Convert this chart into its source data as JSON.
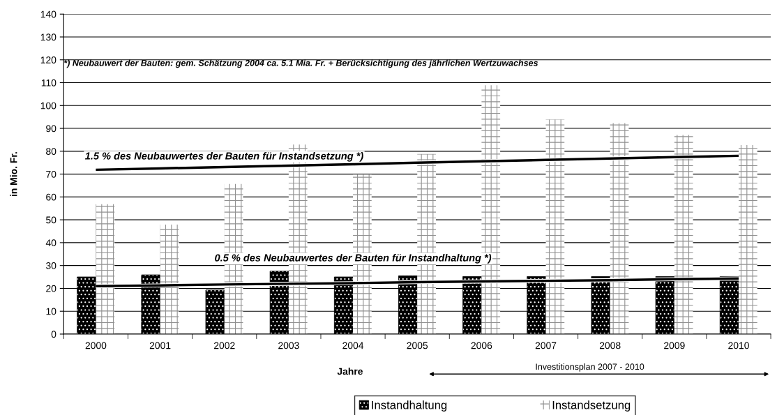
{
  "chart_data": {
    "type": "bar",
    "xlabel": "Jahre",
    "ylabel": "in Mio. Fr.",
    "categories": [
      "2000",
      "2001",
      "2002",
      "2003",
      "2004",
      "2005",
      "2006",
      "2007",
      "2008",
      "2009",
      "2010"
    ],
    "series": [
      {
        "name": "Instandhaltung",
        "color": "#000000",
        "values": [
          25.0,
          25.9,
          19.3,
          27.5,
          25.0,
          25.5,
          25.2,
          25.2,
          25.2,
          25.2,
          25.2
        ]
      },
      {
        "name": "Instandsetzung",
        "color": "#ffffff",
        "values": [
          56.8,
          47.9,
          65.7,
          82.9,
          69.7,
          78.8,
          108.9,
          93.9,
          92.3,
          87.1,
          82.7
        ]
      },
      {
        "type": "line",
        "color": "#000000",
        "values": [
          71.9,
          72.5,
          73.1,
          73.7,
          74.3,
          75.0,
          75.6,
          76.2,
          76.8,
          77.4,
          78.0
        ]
      },
      {
        "type": "line",
        "color": "#000000",
        "values": [
          21.0,
          21.3,
          21.7,
          22.0,
          22.3,
          22.7,
          23.0,
          23.3,
          23.6,
          24.0,
          24.3
        ]
      }
    ],
    "ylim": [
      0,
      140
    ],
    "yticks": [
      0,
      10,
      20,
      30,
      40,
      50,
      60,
      70,
      80,
      90,
      100,
      110,
      120,
      130,
      140
    ],
    "grid": "y",
    "legend": "bottom",
    "annotations": [
      "1.5 % des Neubauwertes der Bauten für Instandsetzung *)",
      {
        "text": "0.5 % des Neubauwertes der Bauten für Instandhaltung *)",
        "x": "2004",
        "y": 33
      },
      "*) Neubauwert der Bauten: gem. Schätzung 2004 ca. 5.1 Mia. Fr. + Berücksichtigung des jährlichen Wertzuwachses",
      "Investitionsplan 2007 - 2010"
    ]
  }
}
